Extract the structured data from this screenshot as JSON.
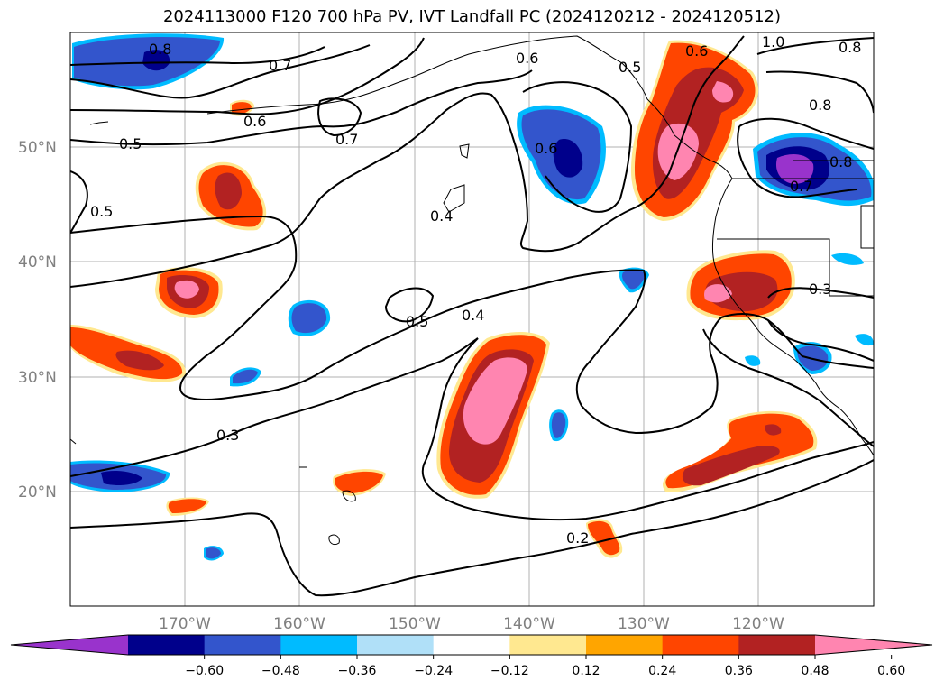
{
  "title": "2024113000 F120 700 hPa PV, IVT Landfall PC (2024120212 - 2024120512)",
  "lat_labels": [
    "50°N",
    "40°N",
    "30°N",
    "20°N"
  ],
  "lon_labels": [
    "170°W",
    "160°W",
    "150°W",
    "140°W",
    "130°W",
    "120°W"
  ],
  "contour_labels": [
    "0.8",
    "0.7",
    "0.6",
    "0.6",
    "1.0",
    "0.8",
    "0.6",
    "0.5",
    "0.8",
    "0.5",
    "0.7",
    "0.6",
    "0.5",
    "0.7",
    "0.8",
    "0.4",
    "0.5",
    "0.4",
    "0.3",
    "0.3",
    "0.2"
  ],
  "colorbar": {
    "ticks": [
      "−0.60",
      "−0.48",
      "−0.36",
      "−0.24",
      "−0.12",
      "0.12",
      "0.24",
      "0.36",
      "0.48",
      "0.60"
    ],
    "colors": [
      "#9933cc",
      "#00008b",
      "#3355cc",
      "#00bbff",
      "#b0e0f8",
      "#ffffff",
      "#ffe890",
      "#ffa500",
      "#ff4500",
      "#b22222",
      "#ff85b0"
    ]
  },
  "shading_colors": {
    "neg_outer": "#00bbff",
    "neg_mid": "#3355cc",
    "neg_inner": "#00008b",
    "neg_core": "#9933cc",
    "pos_outer": "#ffe890",
    "pos_ring": "#ffa500",
    "pos_mid": "#ff4500",
    "pos_inner": "#b22222",
    "pos_core": "#ff85b0"
  }
}
